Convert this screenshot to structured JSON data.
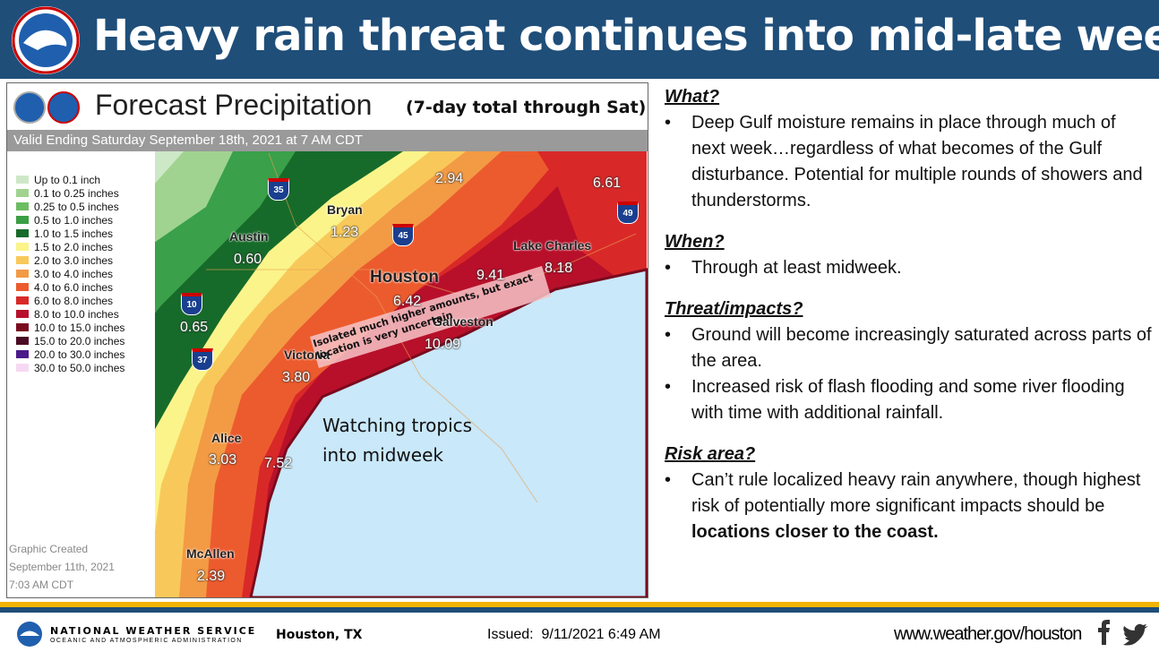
{
  "header": {
    "title": "Heavy rain threat continues into mid-late week"
  },
  "map": {
    "title": "Forecast Precipitation",
    "subtitle": "(7-day total through Sat)",
    "valid": "Valid Ending Saturday September 18th, 2021 at 7 AM CDT",
    "legend": [
      {
        "label": "Up to 0.1 inch",
        "color": "#cde8c6"
      },
      {
        "label": "0.1 to 0.25 inches",
        "color": "#9fd38f"
      },
      {
        "label": "0.25 to 0.5 inches",
        "color": "#6cbd62"
      },
      {
        "label": "0.5 to 1.0 inches",
        "color": "#3a9e44"
      },
      {
        "label": "1.0 to 1.5 inches",
        "color": "#176b2a"
      },
      {
        "label": "1.5 to 2.0 inches",
        "color": "#fbf48a"
      },
      {
        "label": "2.0 to 3.0 inches",
        "color": "#f8c95a"
      },
      {
        "label": "3.0 to 4.0 inches",
        "color": "#f39a45"
      },
      {
        "label": "4.0 to 6.0 inches",
        "color": "#ec5b2e"
      },
      {
        "label": "6.0 to 8.0 inches",
        "color": "#d92828"
      },
      {
        "label": "8.0 to 10.0 inches",
        "color": "#b8102a"
      },
      {
        "label": "10.0 to 15.0 inches",
        "color": "#7a0a1e"
      },
      {
        "label": "15.0 to 20.0 inches",
        "color": "#4a0a24"
      },
      {
        "label": "20.0 to 30.0 inches",
        "color": "#4a1a8a"
      },
      {
        "label": "30.0 to 50.0 inches",
        "color": "#f7d8f4"
      }
    ],
    "cities": [
      {
        "name": "Austin",
        "amount": "0.60"
      },
      {
        "name": "Bryan",
        "amount": "1.23"
      },
      {
        "name": "Houston",
        "amount": "6.42"
      },
      {
        "name": "Victoria",
        "amount": "3.80"
      },
      {
        "name": "Alice",
        "amount": "3.03"
      },
      {
        "name": "McAllen",
        "amount": "2.39"
      },
      {
        "name": "Lake Charles",
        "amount": "8.18"
      },
      {
        "name": "Galveston",
        "amount": "10.09"
      }
    ],
    "amounts": [
      "2.94",
      "6.61",
      "9.41",
      "0.65",
      "7.52"
    ],
    "interstates": [
      "35",
      "45",
      "10",
      "37",
      "49"
    ],
    "annotation": "Isolated much higher amounts, but exact location is very uncertain",
    "callout": "Watching tropics into midweek",
    "created": [
      "Graphic Created",
      "September 11th, 2021",
      "7:03 AM CDT"
    ]
  },
  "panel": {
    "sections": [
      {
        "heading": "What?",
        "bullets": [
          {
            "text": "Deep Gulf moisture remains in place through much of next week…regardless of what becomes of the Gulf disturbance. Potential for multiple rounds of showers and thunderstorms."
          }
        ]
      },
      {
        "heading": "When?",
        "bullets": [
          {
            "text": "Through at least midweek."
          }
        ]
      },
      {
        "heading": "Threat/impacts?",
        "bullets": [
          {
            "text": "Ground will become increasingly saturated across parts of the area."
          },
          {
            "text": "Increased risk of flash flooding and some river flooding with time with additional rainfall."
          }
        ]
      },
      {
        "heading": "Risk area?",
        "bullets": [
          {
            "text": "Can’t rule localized heavy rain anywhere, though highest risk of potentially more significant impacts should be ",
            "bold": "locations closer to the coast."
          }
        ]
      }
    ]
  },
  "footer": {
    "agency": "NATIONAL WEATHER SERVICE",
    "agency_sub": "OCEANIC AND ATMOSPHERIC ADMINISTRATION",
    "office": "Houston, TX",
    "issued": "Issued:  9/11/2021 6:49 AM",
    "url": "www.weather.gov/houston"
  }
}
